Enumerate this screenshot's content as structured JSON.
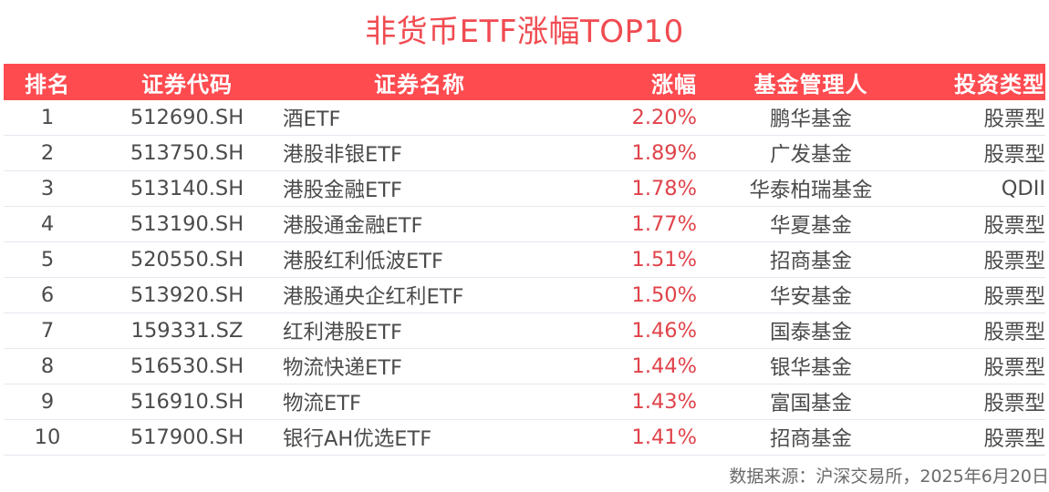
{
  "title": "非货币ETF涨幅TOP10",
  "table": {
    "headers": {
      "rank": "排名",
      "code": "证券代码",
      "name": "证券名称",
      "change": "涨幅",
      "manager": "基金管理人",
      "type": "投资类型"
    },
    "rows": [
      {
        "rank": "1",
        "code": "512690.SH",
        "name": "酒ETF",
        "change": "2.20%",
        "manager": "鹏华基金",
        "type": "股票型"
      },
      {
        "rank": "2",
        "code": "513750.SH",
        "name": "港股非银ETF",
        "change": "1.89%",
        "manager": "广发基金",
        "type": "股票型"
      },
      {
        "rank": "3",
        "code": "513140.SH",
        "name": "港股金融ETF",
        "change": "1.78%",
        "manager": "华泰柏瑞基金",
        "type": "QDII"
      },
      {
        "rank": "4",
        "code": "513190.SH",
        "name": "港股通金融ETF",
        "change": "1.77%",
        "manager": "华夏基金",
        "type": "股票型"
      },
      {
        "rank": "5",
        "code": "520550.SH",
        "name": "港股红利低波ETF",
        "change": "1.51%",
        "manager": "招商基金",
        "type": "股票型"
      },
      {
        "rank": "6",
        "code": "513920.SH",
        "name": "港股通央企红利ETF",
        "change": "1.50%",
        "manager": "华安基金",
        "type": "股票型"
      },
      {
        "rank": "7",
        "code": "159331.SZ",
        "name": "红利港股ETF",
        "change": "1.46%",
        "manager": "国泰基金",
        "type": "股票型"
      },
      {
        "rank": "8",
        "code": "516530.SH",
        "name": "物流快递ETF",
        "change": "1.44%",
        "manager": "银华基金",
        "type": "股票型"
      },
      {
        "rank": "9",
        "code": "516910.SH",
        "name": "物流ETF",
        "change": "1.43%",
        "manager": "富国基金",
        "type": "股票型"
      },
      {
        "rank": "10",
        "code": "517900.SH",
        "name": "银行AH优选ETF",
        "change": "1.41%",
        "manager": "招商基金",
        "type": "股票型"
      }
    ]
  },
  "footer": "数据来源：沪深交易所，2025年6月20日",
  "colors": {
    "accent": "#fe4b50",
    "title": "#f04b51",
    "positive_change": "#e0434a",
    "text": "#4b4b4b"
  }
}
